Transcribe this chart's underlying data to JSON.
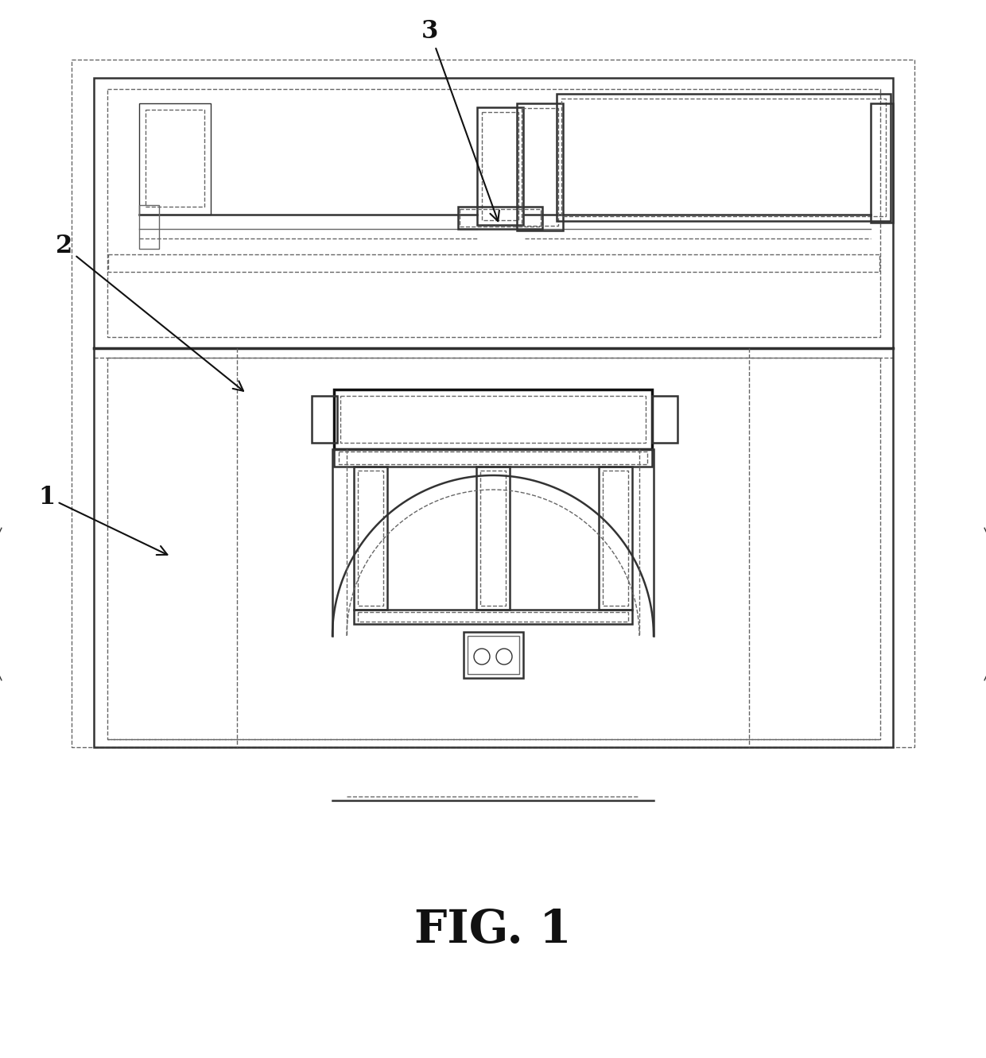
{
  "title": "FIG. 1",
  "bg": "#ffffff",
  "lc": "#666666",
  "lc_dark": "#333333",
  "lc_thick": "#111111",
  "fig_width": 12.4,
  "fig_height": 13.31,
  "dpi": 100
}
